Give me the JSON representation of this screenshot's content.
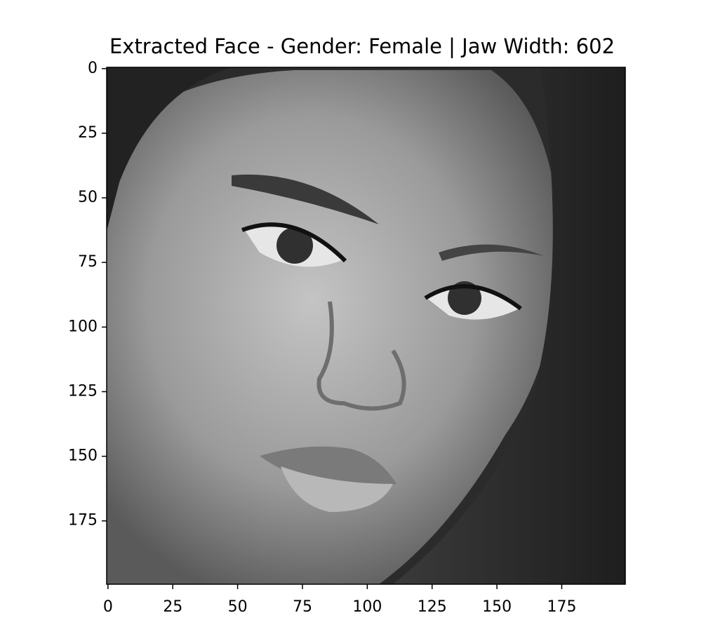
{
  "chart_data": {
    "type": "image",
    "title": "Extracted Face - Gender: Female | Jaw Width: 602",
    "colormap": "gray",
    "xlim": [
      -0.5,
      199.5
    ],
    "ylim": [
      199.5,
      -0.5
    ],
    "xticks": [
      0,
      25,
      50,
      75,
      100,
      125,
      150,
      175
    ],
    "yticks": [
      0,
      25,
      50,
      75,
      100,
      125,
      150,
      175
    ]
  }
}
